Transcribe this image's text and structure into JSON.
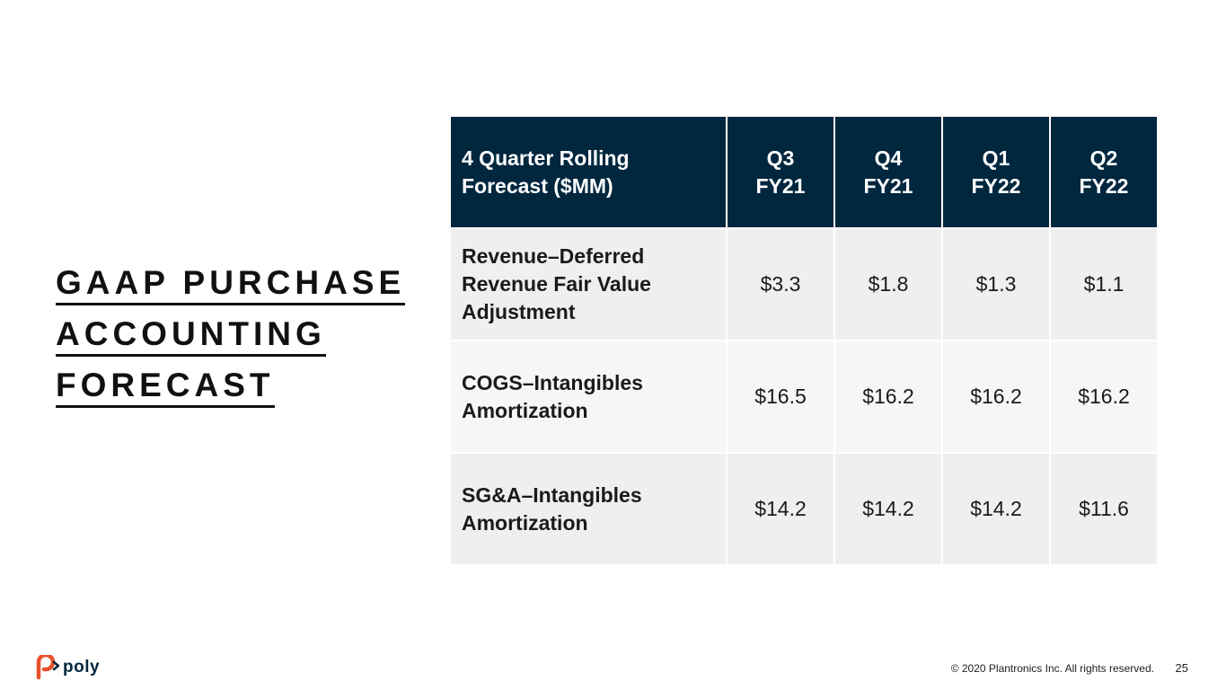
{
  "slide": {
    "title_lines": [
      "GAAP PURCHASE",
      "ACCOUNTING",
      "FORECAST"
    ],
    "table": {
      "header_label_lines": [
        "4 Quarter Rolling",
        "Forecast ($MM)"
      ],
      "quarters": [
        {
          "top": "Q3",
          "bottom": "FY21"
        },
        {
          "top": "Q4",
          "bottom": "FY21"
        },
        {
          "top": "Q1",
          "bottom": "FY22"
        },
        {
          "top": "Q2",
          "bottom": "FY22"
        }
      ],
      "rows": [
        {
          "label_lines": [
            "Revenue–Deferred",
            "Revenue Fair Value",
            "Adjustment"
          ],
          "values": [
            "$3.3",
            "$1.8",
            "$1.3",
            "$1.1"
          ]
        },
        {
          "label_lines": [
            "COGS–Intangibles",
            "Amortization"
          ],
          "values": [
            "$16.5",
            "$16.2",
            "$16.2",
            "$16.2"
          ]
        },
        {
          "label_lines": [
            "SG&A–Intangibles",
            "Amortization"
          ],
          "values": [
            "$14.2",
            "$14.2",
            "$14.2",
            "$11.6"
          ]
        }
      ]
    },
    "footer": {
      "logo_text": "poly",
      "logo_icon": "poly-logo-icon",
      "copyright": "© 2020 Plantronics Inc. All rights reserved.",
      "page_number": "25"
    },
    "colors": {
      "header_bg": "#01273f",
      "accent_orange": "#e8512a",
      "row_odd": "#efefef",
      "row_even": "#f6f6f6"
    }
  }
}
